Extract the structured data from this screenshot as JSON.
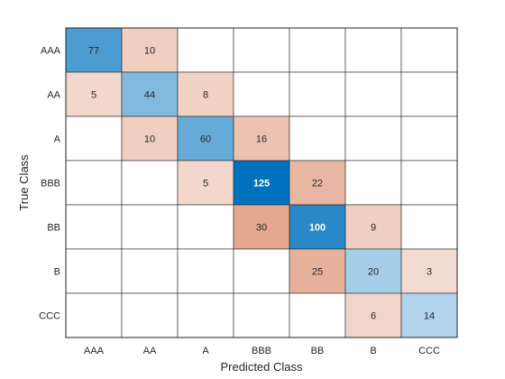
{
  "chart_data": {
    "type": "heatmap",
    "title": "",
    "xlabel": "Predicted Class",
    "ylabel": "True Class",
    "x_categories": [
      "AAA",
      "AA",
      "A",
      "BBB",
      "BB",
      "B",
      "CCC"
    ],
    "y_categories": [
      "AAA",
      "AA",
      "A",
      "BBB",
      "BB",
      "B",
      "CCC"
    ],
    "values": [
      [
        77,
        10,
        0,
        0,
        0,
        0,
        0
      ],
      [
        5,
        44,
        8,
        0,
        0,
        0,
        0
      ],
      [
        0,
        10,
        60,
        16,
        0,
        0,
        0
      ],
      [
        0,
        0,
        5,
        125,
        22,
        0,
        0
      ],
      [
        0,
        0,
        0,
        30,
        100,
        9,
        0
      ],
      [
        0,
        0,
        0,
        0,
        25,
        20,
        3
      ],
      [
        0,
        0,
        0,
        0,
        0,
        6,
        14
      ]
    ],
    "diagonal_color_scale": {
      "low": "#eaf3fb",
      "high": "#0072bd"
    },
    "off_diagonal_color_scale": {
      "low": "#fbefeb",
      "high": "#e3a88f"
    },
    "empty_cell_color": "#ffffff",
    "grid": true
  }
}
